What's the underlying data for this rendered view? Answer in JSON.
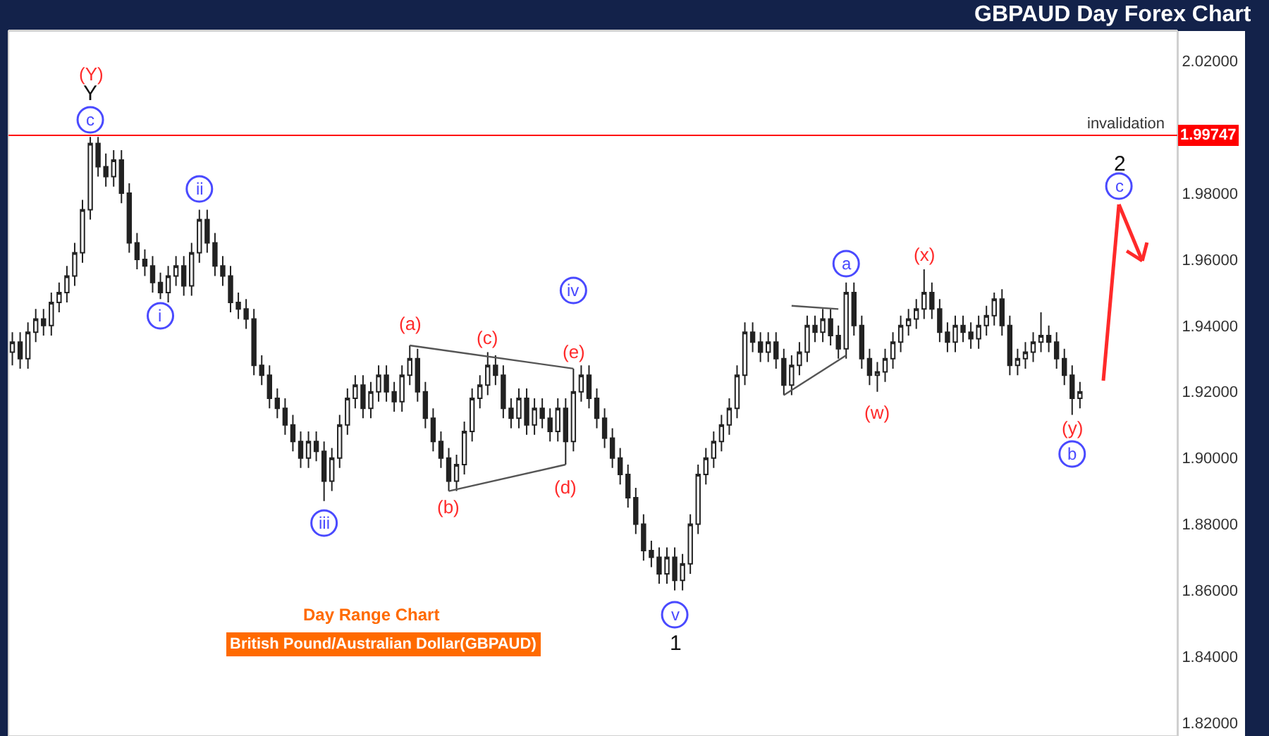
{
  "chart_data": {
    "type": "candlestick",
    "title": "GBPAUD Day Forex Chart",
    "categories": [
      null,
      null,
      null,
      null,
      null,
      null,
      null,
      null,
      null,
      null,
      null,
      null,
      null,
      null,
      null,
      null,
      null,
      null,
      null,
      null,
      null,
      null,
      null,
      null,
      null,
      null,
      null,
      null,
      null,
      null,
      null,
      null,
      null,
      null,
      null,
      null,
      null,
      null,
      null,
      null,
      null,
      null,
      null,
      null,
      null,
      null,
      null,
      null,
      null,
      null,
      null,
      null,
      null,
      null,
      null,
      null,
      null,
      null,
      null,
      null,
      null,
      null,
      null,
      null,
      null,
      null,
      null,
      null,
      null,
      null,
      null,
      null,
      null,
      null,
      null,
      null,
      null,
      null,
      null,
      null,
      null,
      null,
      null,
      null,
      null,
      null,
      null,
      null,
      null,
      null,
      null,
      null,
      null,
      null,
      null,
      null,
      null,
      null,
      null,
      null,
      null,
      null,
      null,
      null,
      null,
      null,
      null,
      null,
      null,
      null,
      null,
      null,
      null,
      null,
      null,
      null,
      null,
      null,
      null,
      null,
      null,
      null,
      null,
      null,
      null,
      null,
      null,
      null,
      null,
      null,
      null,
      null,
      null,
      null,
      null,
      null,
      null,
      null,
      null,
      null,
      null,
      null,
      null,
      null,
      null,
      null,
      null,
      null,
      null,
      null
    ],
    "ohlc": [
      [
        1.932,
        1.938,
        1.928,
        1.935
      ],
      [
        1.935,
        1.938,
        1.927,
        1.93
      ],
      [
        1.93,
        1.941,
        1.927,
        1.938
      ],
      [
        1.938,
        1.945,
        1.935,
        1.942
      ],
      [
        1.942,
        1.945,
        1.937,
        1.94
      ],
      [
        1.94,
        1.95,
        1.937,
        1.947
      ],
      [
        1.947,
        1.953,
        1.944,
        1.95
      ],
      [
        1.95,
        1.958,
        1.947,
        1.955
      ],
      [
        1.955,
        1.965,
        1.952,
        1.962
      ],
      [
        1.962,
        1.978,
        1.959,
        1.975
      ],
      [
        1.975,
        1.997,
        1.972,
        1.995
      ],
      [
        1.995,
        1.997,
        1.985,
        1.988
      ],
      [
        1.988,
        1.992,
        1.982,
        1.985
      ],
      [
        1.985,
        1.993,
        1.982,
        1.99
      ],
      [
        1.99,
        1.993,
        1.977,
        1.98
      ],
      [
        1.98,
        1.983,
        1.962,
        1.965
      ],
      [
        1.965,
        1.968,
        1.957,
        1.96
      ],
      [
        1.96,
        1.963,
        1.955,
        1.958
      ],
      [
        1.958,
        1.961,
        1.95,
        1.953
      ],
      [
        1.953,
        1.956,
        1.948,
        1.95
      ],
      [
        1.95,
        1.958,
        1.947,
        1.955
      ],
      [
        1.955,
        1.961,
        1.952,
        1.958
      ],
      [
        1.958,
        1.961,
        1.949,
        1.952
      ],
      [
        1.952,
        1.965,
        1.949,
        1.962
      ],
      [
        1.962,
        1.975,
        1.959,
        1.972
      ],
      [
        1.972,
        1.975,
        1.962,
        1.965
      ],
      [
        1.965,
        1.968,
        1.955,
        1.958
      ],
      [
        1.958,
        1.961,
        1.952,
        1.955
      ],
      [
        1.955,
        1.958,
        1.944,
        1.947
      ],
      [
        1.947,
        1.95,
        1.942,
        1.945
      ],
      [
        1.945,
        1.948,
        1.939,
        1.942
      ],
      [
        1.942,
        1.945,
        1.925,
        1.928
      ],
      [
        1.928,
        1.931,
        1.922,
        1.925
      ],
      [
        1.925,
        1.928,
        1.915,
        1.918
      ],
      [
        1.918,
        1.921,
        1.912,
        1.915
      ],
      [
        1.915,
        1.918,
        1.907,
        1.91
      ],
      [
        1.91,
        1.913,
        1.902,
        1.905
      ],
      [
        1.905,
        1.908,
        1.897,
        1.9
      ],
      [
        1.9,
        1.908,
        1.897,
        1.905
      ],
      [
        1.905,
        1.908,
        1.899,
        1.902
      ],
      [
        1.902,
        1.905,
        1.887,
        1.893
      ],
      [
        1.893,
        1.903,
        1.89,
        1.9
      ],
      [
        1.9,
        1.913,
        1.897,
        1.91
      ],
      [
        1.91,
        1.921,
        1.907,
        1.918
      ],
      [
        1.918,
        1.925,
        1.915,
        1.922
      ],
      [
        1.922,
        1.925,
        1.912,
        1.915
      ],
      [
        1.915,
        1.923,
        1.912,
        1.92
      ],
      [
        1.92,
        1.928,
        1.917,
        1.925
      ],
      [
        1.925,
        1.928,
        1.917,
        1.92
      ],
      [
        1.92,
        1.923,
        1.914,
        1.917
      ],
      [
        1.917,
        1.928,
        1.914,
        1.925
      ],
      [
        1.925,
        1.934,
        1.922,
        1.93
      ],
      [
        1.93,
        1.933,
        1.917,
        1.92
      ],
      [
        1.92,
        1.923,
        1.909,
        1.912
      ],
      [
        1.912,
        1.915,
        1.902,
        1.905
      ],
      [
        1.905,
        1.908,
        1.897,
        1.9
      ],
      [
        1.9,
        1.903,
        1.89,
        1.893
      ],
      [
        1.893,
        1.901,
        1.89,
        1.898
      ],
      [
        1.898,
        1.911,
        1.895,
        1.908
      ],
      [
        1.908,
        1.921,
        1.905,
        1.918
      ],
      [
        1.918,
        1.925,
        1.915,
        1.922
      ],
      [
        1.922,
        1.932,
        1.919,
        1.928
      ],
      [
        1.928,
        1.931,
        1.922,
        1.925
      ],
      [
        1.925,
        1.928,
        1.912,
        1.915
      ],
      [
        1.915,
        1.918,
        1.909,
        1.912
      ],
      [
        1.912,
        1.921,
        1.909,
        1.918
      ],
      [
        1.918,
        1.921,
        1.907,
        1.91
      ],
      [
        1.91,
        1.918,
        1.907,
        1.915
      ],
      [
        1.915,
        1.918,
        1.909,
        1.912
      ],
      [
        1.912,
        1.915,
        1.905,
        1.908
      ],
      [
        1.908,
        1.918,
        1.905,
        1.915
      ],
      [
        1.915,
        1.918,
        1.898,
        1.905
      ],
      [
        1.905,
        1.927,
        1.902,
        1.92
      ],
      [
        1.92,
        1.928,
        1.917,
        1.925
      ],
      [
        1.925,
        1.928,
        1.915,
        1.918
      ],
      [
        1.918,
        1.921,
        1.909,
        1.912
      ],
      [
        1.912,
        1.915,
        1.903,
        1.906
      ],
      [
        1.906,
        1.909,
        1.897,
        1.9
      ],
      [
        1.9,
        1.903,
        1.892,
        1.895
      ],
      [
        1.895,
        1.898,
        1.885,
        1.888
      ],
      [
        1.888,
        1.891,
        1.877,
        1.88
      ],
      [
        1.88,
        1.883,
        1.869,
        1.872
      ],
      [
        1.872,
        1.875,
        1.867,
        1.87
      ],
      [
        1.87,
        1.873,
        1.862,
        1.865
      ],
      [
        1.865,
        1.873,
        1.862,
        1.87
      ],
      [
        1.87,
        1.873,
        1.86,
        1.863
      ],
      [
        1.863,
        1.871,
        1.86,
        1.868
      ],
      [
        1.868,
        1.883,
        1.865,
        1.88
      ],
      [
        1.88,
        1.898,
        1.877,
        1.895
      ],
      [
        1.895,
        1.903,
        1.892,
        1.9
      ],
      [
        1.9,
        1.908,
        1.897,
        1.905
      ],
      [
        1.905,
        1.913,
        1.902,
        1.91
      ],
      [
        1.91,
        1.918,
        1.907,
        1.915
      ],
      [
        1.915,
        1.928,
        1.912,
        1.925
      ],
      [
        1.925,
        1.941,
        1.922,
        1.938
      ],
      [
        1.938,
        1.941,
        1.932,
        1.935
      ],
      [
        1.935,
        1.938,
        1.929,
        1.932
      ],
      [
        1.932,
        1.938,
        1.929,
        1.935
      ],
      [
        1.935,
        1.938,
        1.927,
        1.93
      ],
      [
        1.93,
        1.933,
        1.919,
        1.922
      ],
      [
        1.922,
        1.931,
        1.919,
        1.928
      ],
      [
        1.928,
        1.935,
        1.925,
        1.932
      ],
      [
        1.932,
        1.943,
        1.929,
        1.94
      ],
      [
        1.94,
        1.943,
        1.935,
        1.938
      ],
      [
        1.938,
        1.945,
        1.935,
        1.942
      ],
      [
        1.942,
        1.945,
        1.934,
        1.937
      ],
      [
        1.937,
        1.94,
        1.93,
        1.933
      ],
      [
        1.933,
        1.953,
        1.93,
        1.95
      ],
      [
        1.95,
        1.953,
        1.937,
        1.94
      ],
      [
        1.94,
        1.943,
        1.927,
        1.93
      ],
      [
        1.93,
        1.933,
        1.922,
        1.925
      ],
      [
        1.925,
        1.929,
        1.92,
        1.926
      ],
      [
        1.926,
        1.933,
        1.923,
        1.93
      ],
      [
        1.93,
        1.938,
        1.927,
        1.935
      ],
      [
        1.935,
        1.943,
        1.932,
        1.94
      ],
      [
        1.94,
        1.945,
        1.937,
        1.942
      ],
      [
        1.942,
        1.948,
        1.939,
        1.945
      ],
      [
        1.945,
        1.957,
        1.942,
        1.95
      ],
      [
        1.95,
        1.953,
        1.942,
        1.945
      ],
      [
        1.945,
        1.948,
        1.935,
        1.938
      ],
      [
        1.938,
        1.941,
        1.932,
        1.935
      ],
      [
        1.935,
        1.943,
        1.932,
        1.94
      ],
      [
        1.94,
        1.943,
        1.935,
        1.938
      ],
      [
        1.938,
        1.941,
        1.933,
        1.936
      ],
      [
        1.936,
        1.943,
        1.933,
        1.94
      ],
      [
        1.94,
        1.946,
        1.937,
        1.943
      ],
      [
        1.943,
        1.95,
        1.94,
        1.948
      ],
      [
        1.948,
        1.951,
        1.937,
        1.94
      ],
      [
        1.94,
        1.943,
        1.925,
        1.928
      ],
      [
        1.928,
        1.933,
        1.925,
        1.93
      ],
      [
        1.93,
        1.935,
        1.927,
        1.932
      ],
      [
        1.932,
        1.938,
        1.929,
        1.935
      ],
      [
        1.935,
        1.944,
        1.932,
        1.937
      ],
      [
        1.937,
        1.94,
        1.932,
        1.935
      ],
      [
        1.935,
        1.938,
        1.927,
        1.93
      ],
      [
        1.93,
        1.933,
        1.922,
        1.925
      ],
      [
        1.925,
        1.928,
        1.913,
        1.918
      ],
      [
        1.918,
        1.923,
        1.915,
        1.92
      ],
      null,
      null,
      null,
      null,
      null,
      null,
      null,
      null,
      null,
      null,
      null,
      null
    ],
    "color": "#222222",
    "series": [
      {
        "type": "line",
        "color": "#555555",
        "values": [
          null,
          null,
          null,
          null,
          null,
          null,
          null,
          null,
          null,
          null,
          null,
          null,
          null,
          null,
          null,
          null,
          null,
          null,
          null,
          null,
          null,
          null,
          null,
          null,
          null,
          null,
          null,
          null,
          null,
          null,
          null,
          null,
          null,
          null,
          null,
          null,
          null,
          null,
          null,
          null,
          null,
          null,
          null,
          null,
          null,
          null,
          null,
          null,
          null,
          null,
          null,
          1.934,
          null,
          null,
          null,
          null,
          null,
          null,
          null,
          null,
          null,
          null,
          null,
          null,
          null,
          null,
          null,
          null,
          null,
          null,
          null,
          null,
          1.927,
          null,
          null,
          null,
          null,
          null,
          null,
          null,
          null,
          null,
          null,
          null,
          null,
          null,
          null,
          null,
          null,
          null,
          null,
          null,
          null,
          null,
          null,
          null,
          null,
          null,
          null,
          null,
          null,
          null,
          null,
          null,
          null,
          null,
          null,
          null,
          null,
          null,
          null,
          null,
          null,
          null,
          null,
          null,
          null,
          null,
          null,
          null,
          null,
          null,
          null,
          null,
          null,
          null,
          null,
          null,
          null,
          null,
          null,
          null,
          null,
          null,
          null,
          null,
          null,
          null,
          null,
          null,
          null,
          null,
          null,
          null,
          null,
          null,
          null,
          null,
          null,
          null
        ]
      },
      {
        "type": "line",
        "color": "#555555",
        "values": [
          null,
          null,
          null,
          null,
          null,
          null,
          null,
          null,
          null,
          null,
          null,
          null,
          null,
          null,
          null,
          null,
          null,
          null,
          null,
          null,
          null,
          null,
          null,
          null,
          null,
          null,
          null,
          null,
          null,
          null,
          null,
          null,
          null,
          null,
          null,
          null,
          null,
          null,
          null,
          null,
          null,
          null,
          null,
          null,
          null,
          null,
          null,
          null,
          null,
          null,
          null,
          null,
          null,
          null,
          null,
          null,
          1.89,
          null,
          null,
          null,
          null,
          null,
          null,
          null,
          null,
          null,
          null,
          null,
          null,
          null,
          null,
          1.898,
          null,
          null,
          null,
          null,
          null,
          null,
          null,
          null,
          null,
          null,
          null,
          null,
          null,
          null,
          null,
          null,
          null,
          null,
          null,
          null,
          null,
          null,
          null,
          null,
          null,
          null,
          null,
          null,
          null,
          null,
          null,
          null,
          null,
          null,
          null,
          null,
          null,
          null,
          null,
          null,
          null,
          null,
          null,
          null,
          null,
          null,
          null,
          null,
          null,
          null,
          null,
          null,
          null,
          null,
          null,
          null,
          null,
          null,
          null,
          null,
          null,
          null,
          null,
          null,
          null,
          null,
          null,
          null,
          null,
          null,
          null,
          null,
          null,
          null,
          null,
          null,
          null,
          null
        ]
      },
      {
        "type": "line",
        "color": "#555555",
        "values": [
          null,
          null,
          null,
          null,
          null,
          null,
          null,
          null,
          null,
          null,
          null,
          null,
          null,
          null,
          null,
          null,
          null,
          null,
          null,
          null,
          null,
          null,
          null,
          null,
          null,
          null,
          null,
          null,
          null,
          null,
          null,
          null,
          null,
          null,
          null,
          null,
          null,
          null,
          null,
          null,
          null,
          null,
          null,
          null,
          null,
          null,
          null,
          null,
          null,
          null,
          null,
          null,
          null,
          null,
          null,
          null,
          null,
          null,
          null,
          null,
          null,
          null,
          null,
          null,
          null,
          null,
          null,
          null,
          null,
          null,
          null,
          null,
          null,
          null,
          null,
          null,
          null,
          null,
          null,
          null,
          null,
          null,
          null,
          null,
          null,
          null,
          null,
          null,
          null,
          null,
          null,
          null,
          null,
          null,
          null,
          null,
          null,
          null,
          null,
          1.919,
          null,
          null,
          null,
          null,
          null,
          null,
          null,
          1.931,
          null,
          null,
          null,
          null,
          null,
          null,
          null,
          null,
          null,
          null,
          null,
          null,
          null,
          null,
          null,
          null,
          null,
          null,
          null,
          null,
          null,
          null,
          null,
          null,
          null,
          null,
          null,
          null,
          null,
          null,
          null,
          null,
          null,
          null,
          null,
          null,
          null,
          null,
          null,
          null,
          null,
          null
        ]
      },
      {
        "type": "line",
        "color": "#555555",
        "values": [
          null,
          null,
          null,
          null,
          null,
          null,
          null,
          null,
          null,
          null,
          null,
          null,
          null,
          null,
          null,
          null,
          null,
          null,
          null,
          null,
          null,
          null,
          null,
          null,
          null,
          null,
          null,
          null,
          null,
          null,
          null,
          null,
          null,
          null,
          null,
          null,
          null,
          null,
          null,
          null,
          null,
          null,
          null,
          null,
          null,
          null,
          null,
          null,
          null,
          null,
          null,
          null,
          null,
          null,
          null,
          null,
          null,
          null,
          null,
          null,
          null,
          null,
          null,
          null,
          null,
          null,
          null,
          null,
          null,
          null,
          null,
          null,
          null,
          null,
          null,
          null,
          null,
          null,
          null,
          null,
          null,
          null,
          null,
          null,
          null,
          null,
          null,
          null,
          null,
          null,
          null,
          null,
          null,
          null,
          null,
          null,
          null,
          null,
          null,
          null,
          1.946,
          null,
          null,
          null,
          null,
          null,
          1.945,
          null,
          null,
          null,
          null,
          null,
          null,
          null,
          null,
          null,
          null,
          null,
          null,
          null,
          null,
          null,
          null,
          null,
          null,
          null,
          null,
          null,
          null,
          null,
          null,
          null,
          null,
          null,
          null,
          null,
          null,
          null,
          null,
          null,
          null,
          null,
          null,
          null,
          null,
          null,
          null,
          null,
          null,
          null
        ]
      }
    ],
    "ylim": [
      1.816,
      2.029
    ],
    "yticks": [
      {
        "value": 1.82,
        "label": "1.82000"
      },
      {
        "value": 1.84,
        "label": "1.84000"
      },
      {
        "value": 1.86,
        "label": "1.86000"
      },
      {
        "value": 1.88,
        "label": "1.88000"
      },
      {
        "value": 1.9,
        "label": "1.90000"
      },
      {
        "value": 1.92,
        "label": "1.92000"
      },
      {
        "value": 1.94,
        "label": "1.94000"
      },
      {
        "value": 1.96,
        "label": "1.96000"
      },
      {
        "value": 1.98,
        "label": "1.98000"
      },
      {
        "value": 2.02,
        "label": "2.02000"
      }
    ],
    "tick_labels": "y",
    "ref_lines": [
      {
        "axis": "y",
        "value": 1.99747,
        "label": "1.99747",
        "color": "#ff0000"
      }
    ],
    "annotations": [
      "(Y)",
      "Y",
      "c",
      "i",
      "ii",
      "iii",
      "(a)",
      "(b)",
      "(c)",
      "(d)",
      "(e)",
      "iv",
      "v",
      "1",
      "a",
      "(w)",
      "(x)",
      "(y)",
      "b",
      "2",
      "c",
      "invalidation",
      "Day Range Chart",
      "British Pound/Australian Dollar(GBPAUD)"
    ]
  }
}
